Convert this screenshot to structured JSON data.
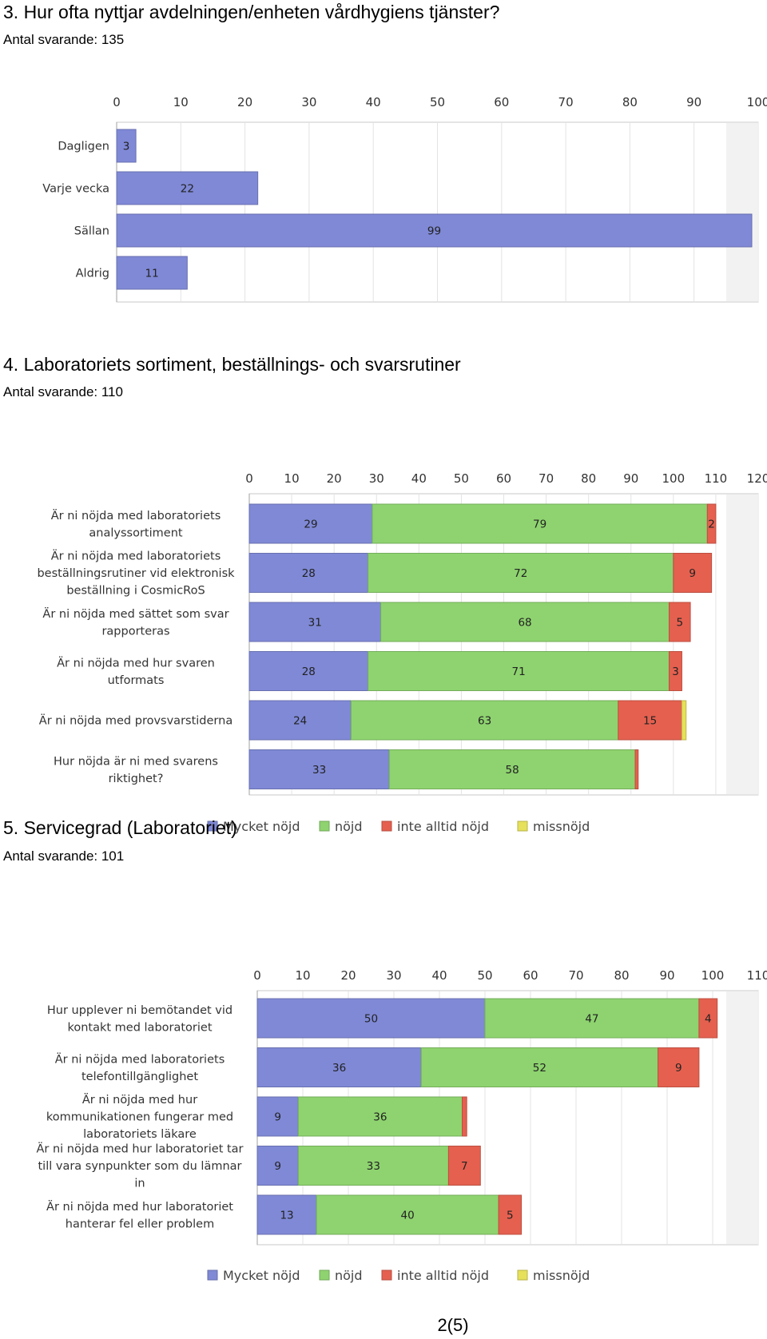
{
  "colors": {
    "mycket_nojd": "#7f89d6",
    "nojd": "#8ed36f",
    "inte_alltid_nojd": "#e5604f",
    "missnojd": "#e6e05a"
  },
  "chart_data": [
    {
      "type": "bar",
      "orientation": "horizontal",
      "title": "3. Hur ofta nyttjar avdelningen/enheten vårdhygiens tjänster?",
      "subtitle": "Antal svarande: 135",
      "xlim": [
        0,
        100
      ],
      "xticks": [
        0,
        10,
        20,
        30,
        40,
        50,
        60,
        70,
        80,
        90,
        100
      ],
      "categories": [
        "Dagligen",
        "Varje vecka",
        "Sällan",
        "Aldrig"
      ],
      "values": [
        3,
        22,
        99,
        11
      ],
      "grid": "vertical",
      "legend": "none"
    },
    {
      "type": "bar",
      "orientation": "horizontal",
      "stacked": true,
      "title": "4. Laboratoriets sortiment, beställnings- och svarsrutiner",
      "subtitle": "Antal svarande: 110",
      "xlim": [
        0,
        120
      ],
      "xticks": [
        0,
        10,
        20,
        30,
        40,
        50,
        60,
        70,
        80,
        90,
        100,
        110,
        120
      ],
      "categories": [
        [
          "Är ni nöjda med laboratoriets",
          "analyssortiment"
        ],
        [
          "Är ni nöjda med laboratoriets",
          "beställningsrutiner vid elektronisk",
          "beställning i CosmicRoS"
        ],
        [
          "Är ni nöjda med sättet som svar",
          "rapporteras"
        ],
        [
          "Är ni nöjda med hur svaren",
          "utformats"
        ],
        [
          "Är ni nöjda med  provsvarstiderna"
        ],
        [
          "Hur nöjda är ni med svarens",
          "riktighet?"
        ]
      ],
      "series": [
        {
          "name": "Mycket nöjd",
          "values": [
            29,
            28,
            31,
            28,
            24,
            33
          ]
        },
        {
          "name": "nöjd",
          "values": [
            79,
            72,
            68,
            71,
            63,
            58
          ]
        },
        {
          "name": "inte alltid nöjd",
          "values": [
            2,
            9,
            5,
            3,
            15,
            0.7
          ]
        },
        {
          "name": "missnöjd",
          "values": [
            0,
            0,
            0,
            0,
            1,
            0
          ]
        }
      ],
      "grid": "vertical",
      "legend": "bottom"
    },
    {
      "type": "bar",
      "orientation": "horizontal",
      "stacked": true,
      "title": "5. Servicegrad (Laboratoriet)",
      "subtitle": "Antal svarande: 101",
      "xlim": [
        0,
        110
      ],
      "xticks": [
        0,
        10,
        20,
        30,
        40,
        50,
        60,
        70,
        80,
        90,
        100,
        110
      ],
      "categories": [
        [
          "Hur upplever ni bemötandet vid",
          "kontakt med laboratoriet"
        ],
        [
          "Är ni nöjda med laboratoriets",
          "telefontillgänglighet"
        ],
        [
          "Är ni nöjda med hur",
          "kommunikationen fungerar med",
          "laboratoriets läkare"
        ],
        [
          "Är ni nöjda med hur laboratoriet tar",
          "till vara synpunkter som du lämnar",
          "in"
        ],
        [
          "Är ni nöjda med hur laboratoriet",
          "hanterar fel eller problem"
        ]
      ],
      "series": [
        {
          "name": "Mycket nöjd",
          "values": [
            50,
            36,
            9,
            9,
            13
          ]
        },
        {
          "name": "nöjd",
          "values": [
            47,
            52,
            36,
            33,
            40
          ]
        },
        {
          "name": "inte alltid nöjd",
          "values": [
            4,
            9,
            1,
            7,
            5
          ]
        },
        {
          "name": "missnöjd",
          "values": [
            0,
            0,
            0,
            0,
            0
          ]
        }
      ],
      "grid": "vertical",
      "legend": "bottom"
    }
  ],
  "page_number": "2(5)"
}
